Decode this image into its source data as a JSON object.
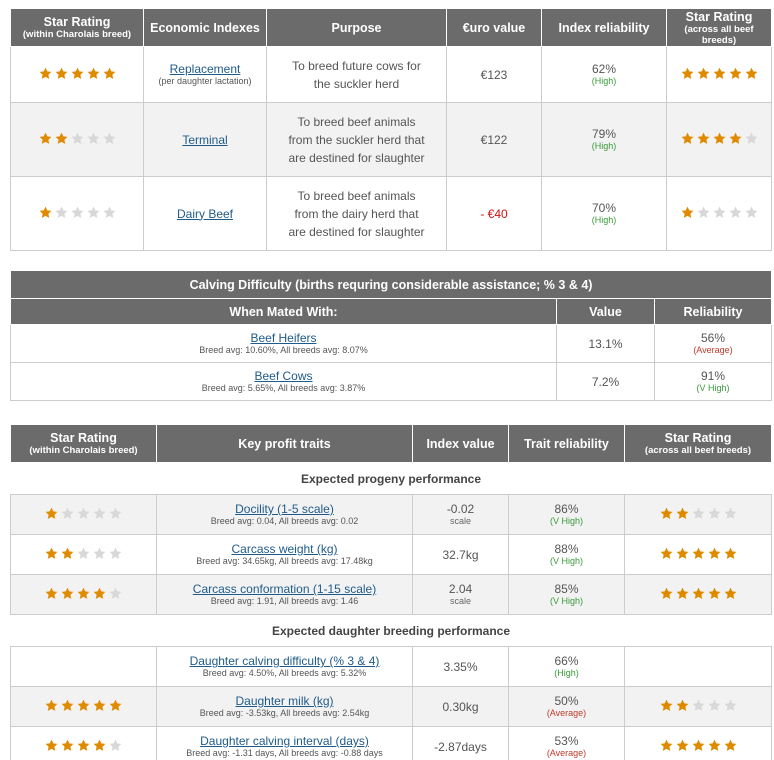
{
  "economic": {
    "headers": {
      "star_within": "Star Rating",
      "star_within_sub": "(within Charolais breed)",
      "indexes": "Economic Indexes",
      "purpose": "Purpose",
      "euro": "€uro value",
      "reliability": "Index reliability",
      "star_across": "Star Rating",
      "star_across_sub": "(across all beef breeds)"
    },
    "rows": [
      {
        "stars_within": 5,
        "name": "Replacement",
        "name_sub": "(per daughter lactation)",
        "purpose_l1": "To breed future cows for",
        "purpose_l2": "the suckler herd",
        "purpose_l3": "",
        "euro": "€123",
        "euro_neg": false,
        "reliability": "62%",
        "reliability_label": "(High)",
        "stars_across": 5
      },
      {
        "stars_within": 2,
        "name": "Terminal",
        "name_sub": "",
        "purpose_l1": "To breed beef animals",
        "purpose_l2": "from the suckler herd that",
        "purpose_l3": "are destined for slaughter",
        "euro": "€122",
        "euro_neg": false,
        "reliability": "79%",
        "reliability_label": "(High)",
        "stars_across": 4
      },
      {
        "stars_within": 1,
        "name": "Dairy Beef",
        "name_sub": "",
        "purpose_l1": "To breed beef animals",
        "purpose_l2": "from the dairy herd that",
        "purpose_l3": "are destined for slaughter",
        "euro": "- €40",
        "euro_neg": true,
        "reliability": "70%",
        "reliability_label": "(High)",
        "stars_across": 1
      }
    ]
  },
  "calving": {
    "title": "Calving Difficulty (births requring considerable assistance; % 3 & 4)",
    "headers": {
      "mated": "When Mated With:",
      "value": "Value",
      "reliability": "Reliability"
    },
    "rows": [
      {
        "name": "Beef Heifers",
        "avg": "Breed avg: 10.60%, All breeds avg: 8.07%",
        "value": "13.1%",
        "reliability": "56%",
        "reliability_label": "(Average)",
        "label_color": "red"
      },
      {
        "name": "Beef Cows",
        "avg": "Breed avg: 5.65%, All breeds avg: 3.87%",
        "value": "7.2%",
        "reliability": "91%",
        "reliability_label": "(V High)",
        "label_color": "green"
      }
    ]
  },
  "traits": {
    "headers": {
      "star_within": "Star Rating",
      "star_within_sub": "(within Charolais breed)",
      "key": "Key profit traits",
      "index": "Index value",
      "reliability": "Trait reliability",
      "star_across": "Star Rating",
      "star_across_sub": "(across all beef breeds)"
    },
    "progeny_title": "Expected progeny performance",
    "progeny": [
      {
        "stars_within": 1,
        "name": "Docility (1-5 scale)",
        "avg": "Breed avg: 0.04, All breeds avg: 0.02",
        "value": "-0.02",
        "unit": "scale",
        "reliability": "86%",
        "reliability_label": "(V High)",
        "label_color": "green",
        "stars_across": 2
      },
      {
        "stars_within": 2,
        "name": "Carcass weight (kg)",
        "avg": "Breed avg: 34.65kg, All breeds avg: 17.48kg",
        "value": "32.7kg",
        "unit": "",
        "reliability": "88%",
        "reliability_label": "(V High)",
        "label_color": "green",
        "stars_across": 5
      },
      {
        "stars_within": 4,
        "name": "Carcass conformation (1-15 scale)",
        "avg": "Breed avg: 1.91, All breeds avg: 1.46",
        "value": "2.04",
        "unit": "scale",
        "reliability": "85%",
        "reliability_label": "(V High)",
        "label_color": "green",
        "stars_across": 5
      }
    ],
    "daughter_title": "Expected daughter breeding performance",
    "daughter": [
      {
        "stars_within": 0,
        "name": "Daughter calving difficulty (% 3 & 4)",
        "avg": "Breed avg: 4.50%, All breeds avg: 5.32%",
        "value": "3.35%",
        "unit": "",
        "reliability": "66%",
        "reliability_label": "(High)",
        "label_color": "green",
        "stars_across": 0
      },
      {
        "stars_within": 5,
        "name": "Daughter milk (kg)",
        "avg": "Breed avg: -3.53kg, All breeds avg: 2.54kg",
        "value": "0.30kg",
        "unit": "",
        "reliability": "50%",
        "reliability_label": "(Average)",
        "label_color": "red",
        "stars_across": 2
      },
      {
        "stars_within": 4,
        "name": "Daughter calving interval (days)",
        "avg": "Breed avg: -1.31 days, All breeds avg: -0.88 days",
        "value": "-2.87days",
        "unit": "",
        "reliability": "53%",
        "reliability_label": "(Average)",
        "label_color": "red",
        "stars_across": 5
      }
    ]
  },
  "colors": {
    "header_bg": "#6b6b6b",
    "star_on": "#e08a00",
    "star_off": "#d8d8d8",
    "link": "#1f5b8a",
    "green": "#3a9a3a",
    "red": "#c0392b"
  }
}
